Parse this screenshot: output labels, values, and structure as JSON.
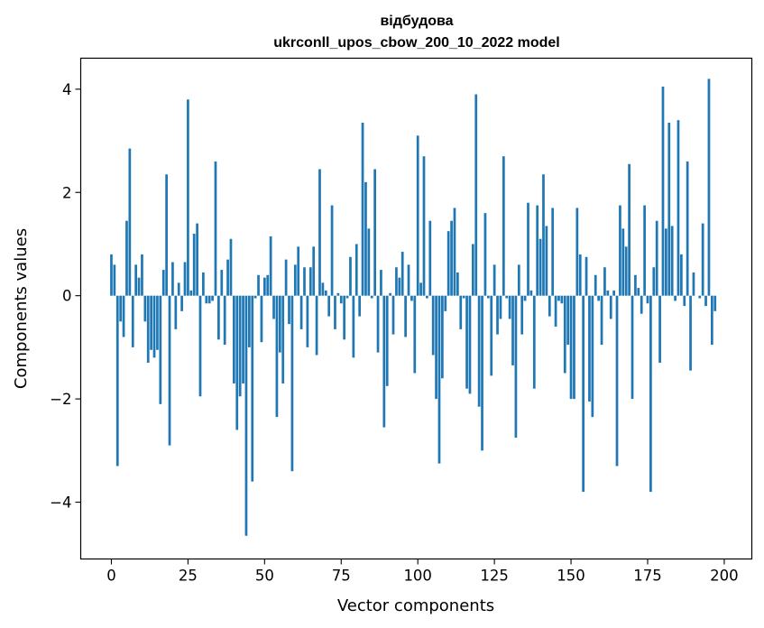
{
  "chart_data": {
    "type": "bar",
    "title": "відбудова",
    "subtitle": "ukrconll_upos_cbow_200_10_2022 model",
    "xlabel": "Vector components",
    "ylabel": "Components values",
    "xlim": [
      -10,
      209
    ],
    "ylim": [
      -5.1,
      4.6
    ],
    "xticks": [
      0,
      25,
      50,
      75,
      100,
      125,
      150,
      175,
      200
    ],
    "yticks": [
      -4,
      -2,
      0,
      2,
      4
    ],
    "bar_color": "#1f77b4",
    "grid": false,
    "legend": "none",
    "values": [
      0.8,
      0.6,
      -3.3,
      -0.5,
      -0.8,
      1.45,
      2.85,
      -1.0,
      0.6,
      0.35,
      0.8,
      -0.5,
      -1.3,
      -1.05,
      -1.2,
      -1.05,
      -2.1,
      0.5,
      2.35,
      -2.9,
      0.65,
      -0.65,
      0.25,
      -0.3,
      0.65,
      3.8,
      0.1,
      1.2,
      1.4,
      -1.95,
      0.45,
      -0.15,
      -0.15,
      -0.1,
      2.6,
      -0.85,
      0.5,
      -0.95,
      0.7,
      1.1,
      -1.7,
      -2.6,
      -1.95,
      -1.7,
      -4.65,
      -1.0,
      -3.6,
      -0.05,
      0.4,
      -0.9,
      0.35,
      0.4,
      1.15,
      -0.45,
      -2.35,
      -1.1,
      -1.7,
      0.7,
      -0.55,
      -3.4,
      0.6,
      0.95,
      -0.65,
      0.55,
      -1.0,
      0.55,
      0.95,
      -1.15,
      2.45,
      0.25,
      0.1,
      -0.4,
      1.75,
      -0.65,
      0.05,
      -0.15,
      -0.85,
      -0.05,
      0.75,
      -1.2,
      1.0,
      -0.4,
      3.35,
      2.2,
      1.3,
      -0.05,
      2.45,
      -1.1,
      0.5,
      -2.55,
      -1.75,
      0.05,
      -0.75,
      0.55,
      0.35,
      0.85,
      -0.8,
      0.6,
      -0.1,
      -1.5,
      3.1,
      0.25,
      2.7,
      -0.05,
      1.45,
      -1.15,
      -2.0,
      -3.25,
      -1.6,
      -0.3,
      1.25,
      1.45,
      1.7,
      0.45,
      -0.65,
      -0.05,
      -1.8,
      -1.9,
      1.0,
      3.9,
      -2.15,
      -3.0,
      1.6,
      -0.05,
      -1.55,
      0.6,
      -0.75,
      -0.45,
      2.7,
      -0.05,
      -0.45,
      -1.35,
      -2.75,
      0.6,
      -0.75,
      -0.1,
      1.8,
      0.1,
      -1.8,
      1.75,
      1.1,
      2.35,
      1.35,
      -0.4,
      1.7,
      -0.6,
      -0.1,
      -0.15,
      -1.5,
      -0.95,
      -2.0,
      -2.0,
      1.7,
      0.8,
      -3.8,
      0.75,
      -2.05,
      -2.35,
      0.4,
      -0.1,
      -0.95,
      0.55,
      0.1,
      -0.45,
      0.1,
      -3.3,
      1.75,
      1.3,
      0.95,
      2.55,
      -2.0,
      0.4,
      0.15,
      -0.35,
      1.75,
      -0.15,
      -3.8,
      0.55,
      1.45,
      -1.3,
      4.05,
      1.3,
      3.35,
      1.35,
      -0.1,
      3.4,
      0.8,
      -0.2,
      2.6,
      -1.45,
      0.45,
      0.0,
      -0.05,
      1.4,
      -0.2,
      4.2,
      -0.95,
      -0.3
    ]
  }
}
